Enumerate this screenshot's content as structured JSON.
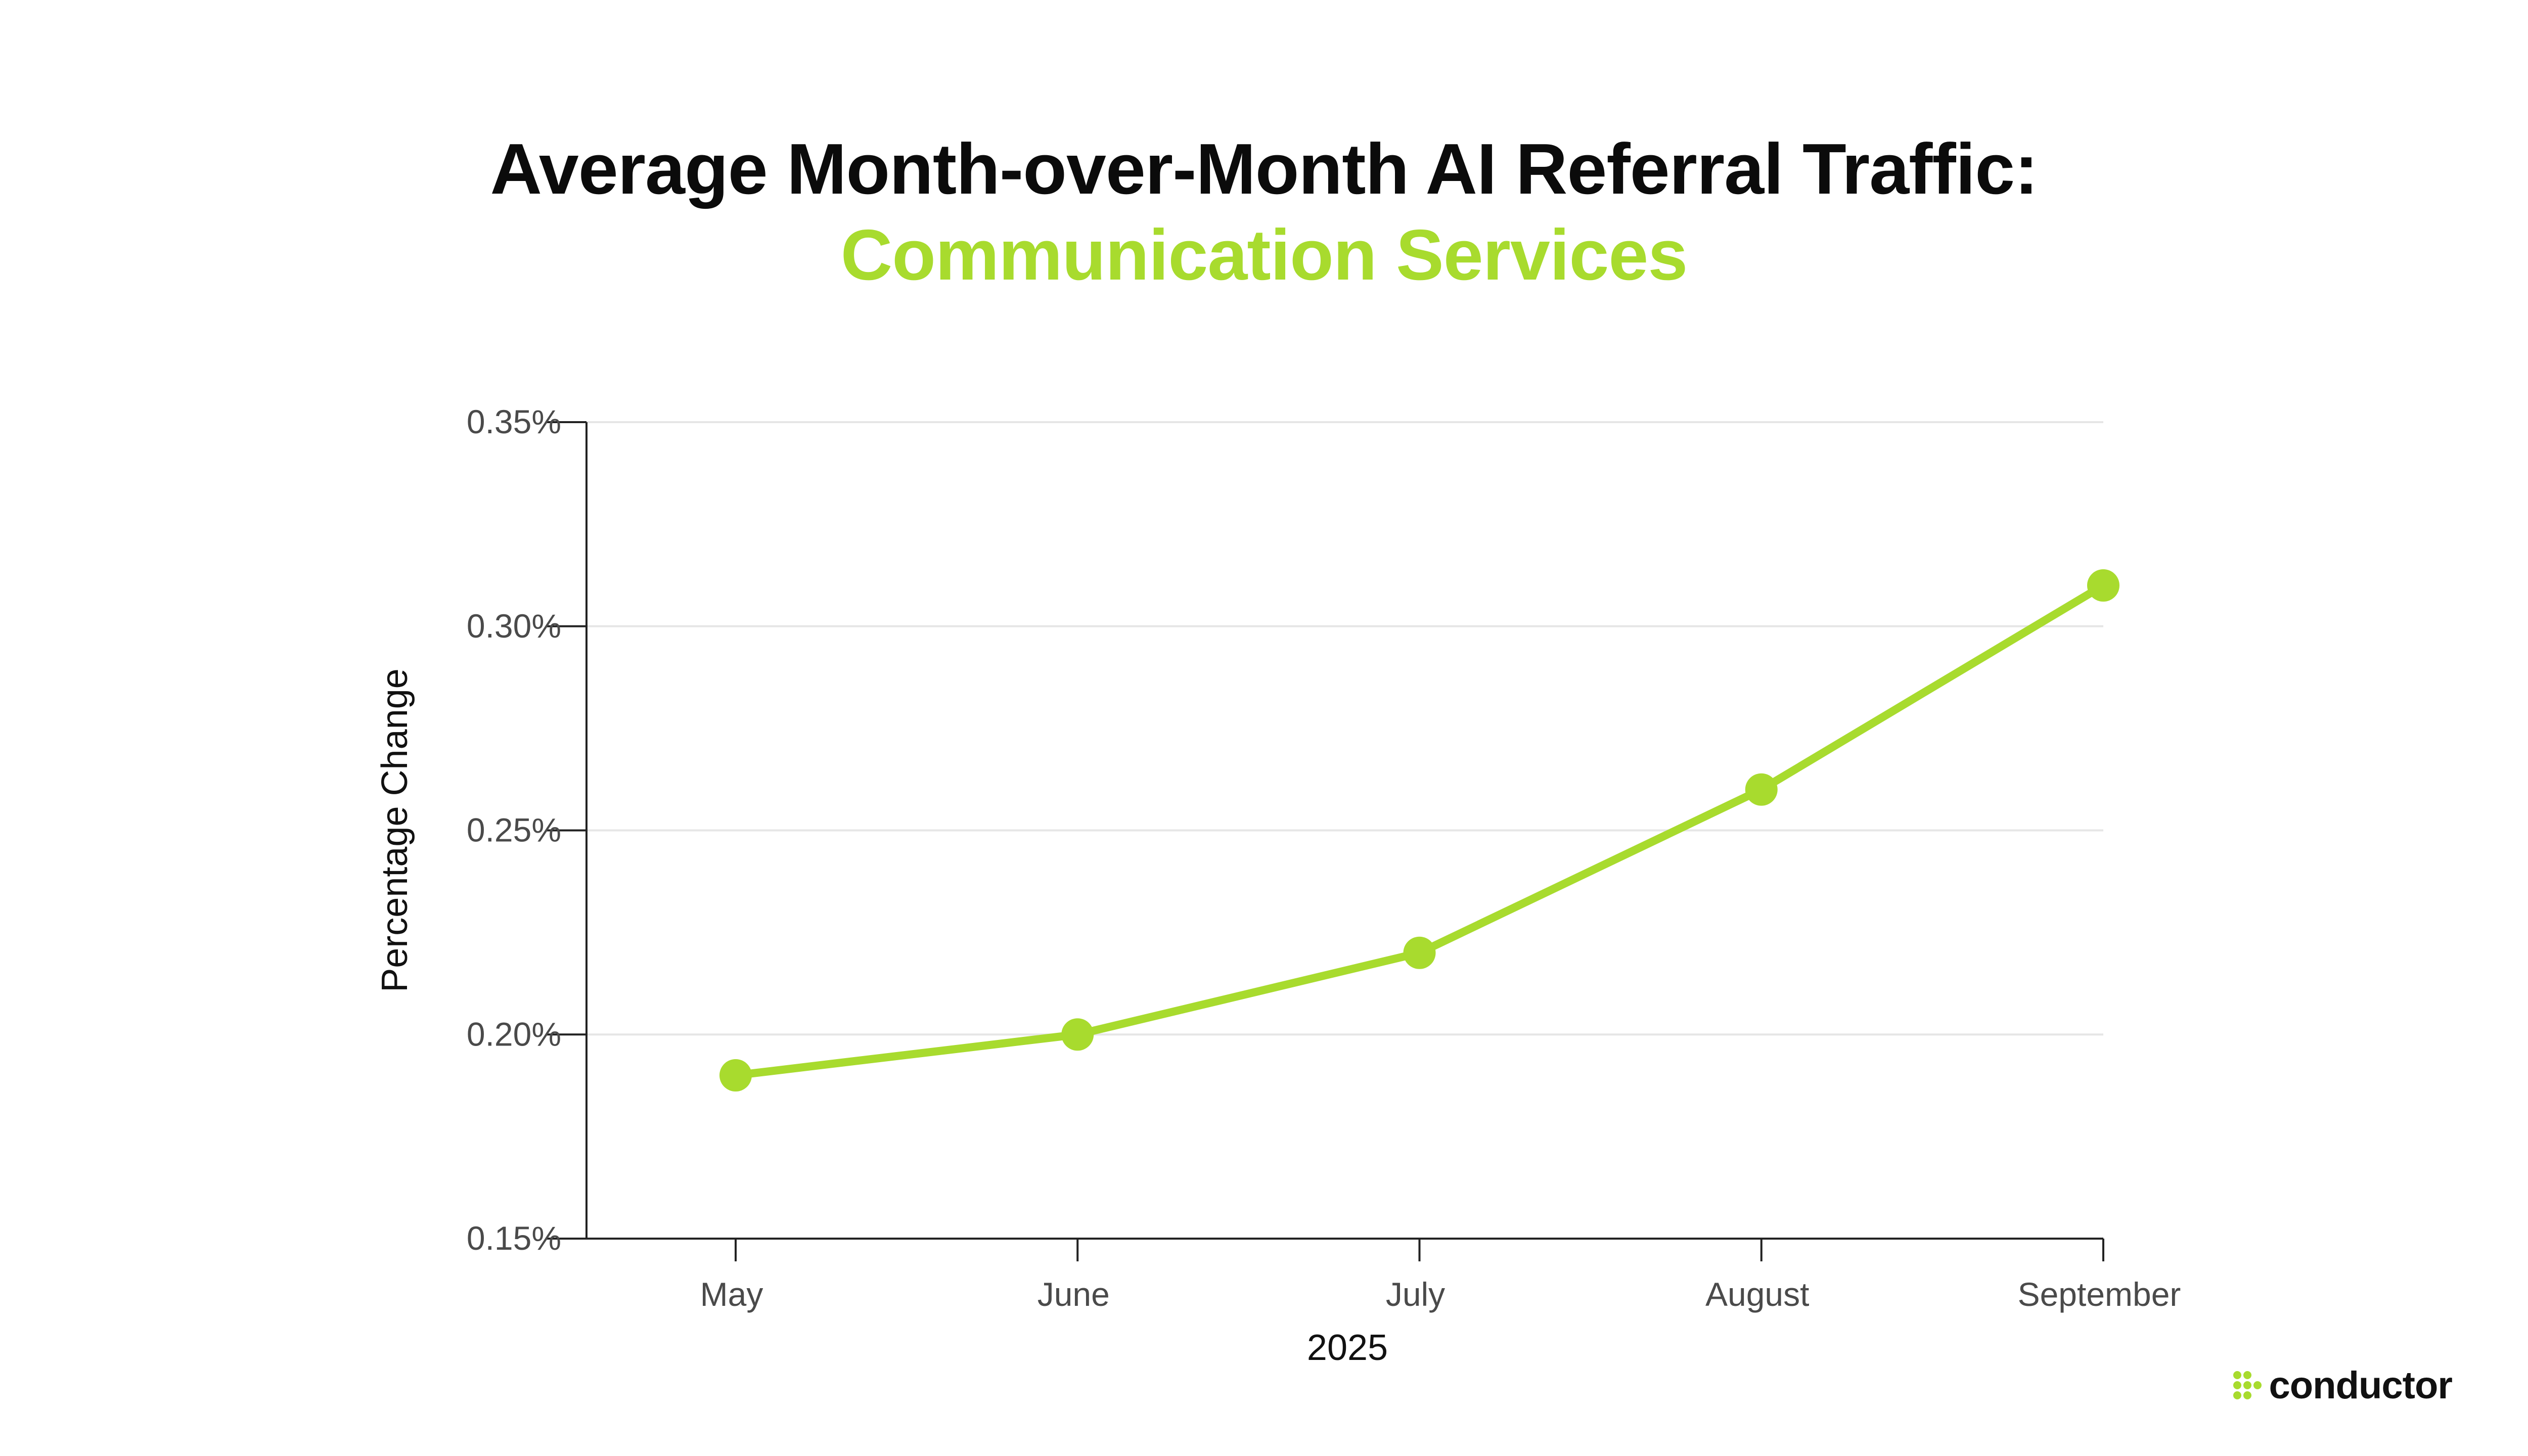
{
  "colors": {
    "accent": "#a8db2e",
    "title": "#0b0b0b",
    "grid": "#e6e6e6",
    "axis": "#222222",
    "tick_text": "#4a4a4a"
  },
  "logo": {
    "text": "conductor",
    "icon": "conductor-dots-icon"
  },
  "chart_data": {
    "type": "line",
    "title": "Average Month-over-Month AI Referral Traffic:",
    "subtitle": "Communication Services",
    "xlabel": "2025",
    "ylabel": "Percentage Change",
    "categories": [
      "May",
      "June",
      "July",
      "August",
      "September"
    ],
    "series": [
      {
        "values": [
          0.19,
          0.2,
          0.22,
          0.26,
          0.31
        ],
        "color": "#a8db2e"
      }
    ],
    "ylim": [
      0.15,
      0.35
    ],
    "yticks": [
      0.15,
      0.2,
      0.25,
      0.3,
      0.35
    ],
    "ytick_labels": [
      "0.15%",
      "0.20%",
      "0.25%",
      "0.30%",
      "0.35%"
    ],
    "grid": "horizontal",
    "legend": "none"
  }
}
